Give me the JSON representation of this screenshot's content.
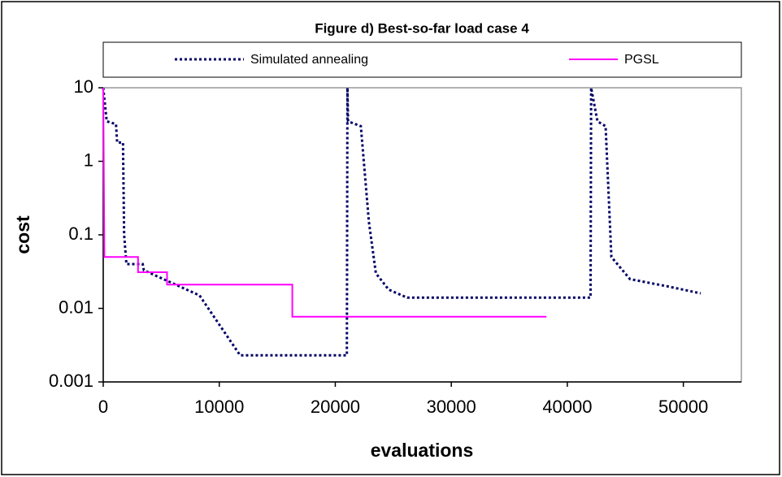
{
  "chart_data": {
    "type": "line",
    "title": "Figure d) Best-so-far load case 4",
    "x_label": "evaluations",
    "y_label": "cost",
    "log_y": true,
    "xlim": [
      0,
      55000
    ],
    "xticks": [
      0,
      10000,
      20000,
      30000,
      40000,
      50000
    ],
    "ylim": [
      0.001,
      10
    ],
    "yticks": [
      0.001,
      0.01,
      0.1,
      1,
      10
    ],
    "series": [
      {
        "name": "Simulated annealing",
        "color": "#000066",
        "dash": true,
        "x": [
          0,
          300,
          1100,
          1200,
          1700,
          1800,
          2000,
          3400,
          3500,
          8300,
          11800,
          21000,
          21050,
          21100,
          22200,
          22900,
          23500,
          24600,
          26200,
          42000,
          42050,
          42600,
          43300,
          43800,
          45400,
          48600,
          51500
        ],
        "values": [
          10,
          3.5,
          3.2,
          1.8,
          1.8,
          0.1,
          0.04,
          0.04,
          0.033,
          0.015,
          0.0023,
          0.0023,
          10,
          3.5,
          3.0,
          0.15,
          0.03,
          0.018,
          0.014,
          0.014,
          10,
          3.5,
          3.0,
          0.05,
          0.025,
          0.02,
          0.016
        ]
      },
      {
        "name": "PGSL",
        "color": "#ff00ff",
        "dash": false,
        "x": [
          0,
          100,
          3000,
          3000,
          5500,
          5500,
          16300,
          16300,
          38200
        ],
        "values": [
          10,
          0.05,
          0.05,
          0.031,
          0.031,
          0.021,
          0.021,
          0.0077,
          0.0077
        ]
      }
    ]
  }
}
